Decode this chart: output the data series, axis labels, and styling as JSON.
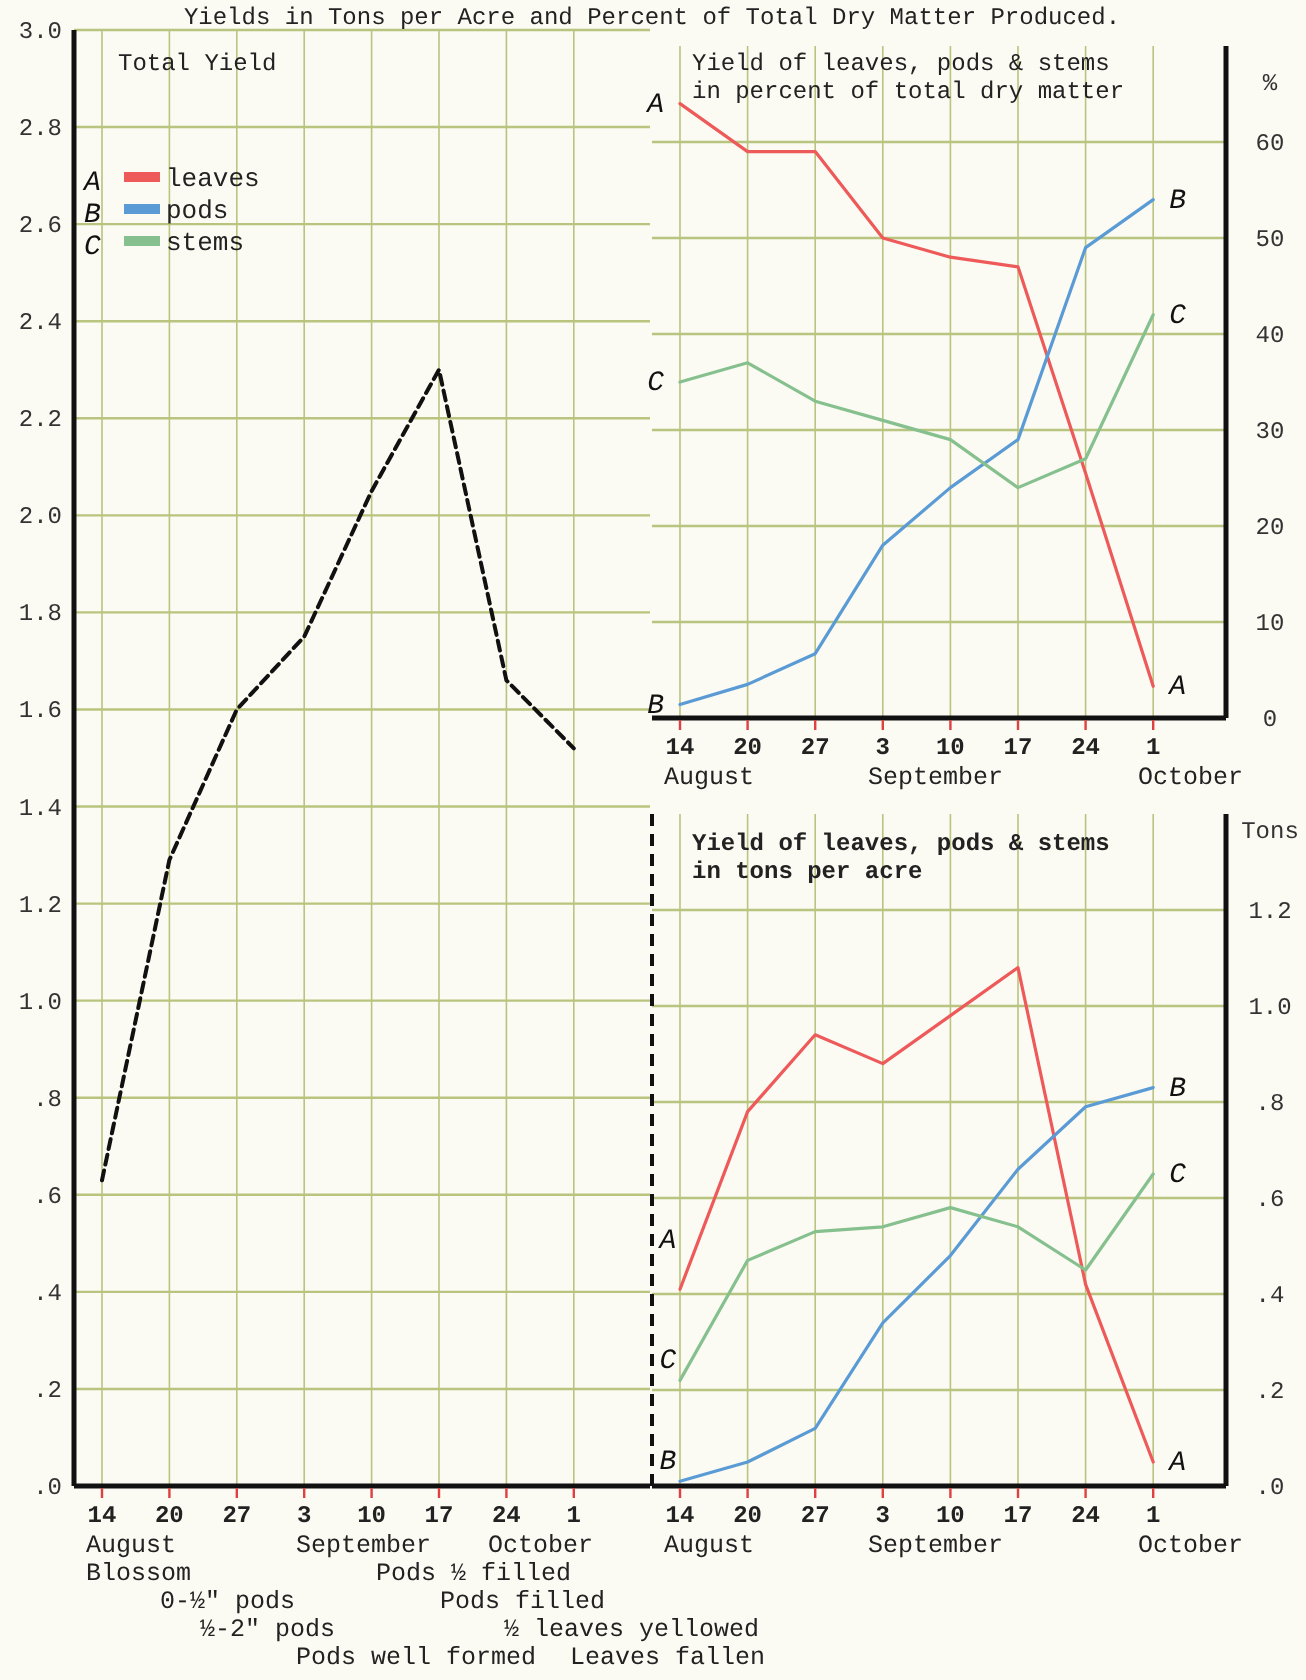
{
  "chart_data": [
    {
      "type": "line",
      "title": "Yields in Tons per Acre and Percent of Total Dry Matter Produced.",
      "subtitle": "Total Yield",
      "categories": [
        "14",
        "20",
        "27",
        "3",
        "10",
        "17",
        "24",
        "1"
      ],
      "values": [
        0.63,
        1.29,
        1.6,
        1.75,
        2.05,
        2.3,
        1.66,
        1.52
      ],
      "color": "#111111",
      "line_style": "dashed",
      "marker": "none",
      "ylim": [
        0,
        3.0
      ],
      "yticks": [
        {
          "value": 0,
          "label": ".0"
        },
        {
          "value": 0.2,
          "label": ".2"
        },
        {
          "value": 0.4,
          "label": ".4"
        },
        {
          "value": 0.6,
          "label": ".6"
        },
        {
          "value": 0.8,
          "label": ".8"
        },
        {
          "value": 1.0,
          "label": "1.0"
        },
        {
          "value": 1.2,
          "label": "1.2"
        },
        {
          "value": 1.4,
          "label": "1.4"
        },
        {
          "value": 1.6,
          "label": "1.6"
        },
        {
          "value": 1.8,
          "label": "1.8"
        },
        {
          "value": 2.0,
          "label": "2.0"
        },
        {
          "value": 2.2,
          "label": "2.2"
        },
        {
          "value": 2.4,
          "label": "2.4"
        },
        {
          "value": 2.6,
          "label": "2.6"
        },
        {
          "value": 2.8,
          "label": "2.8"
        },
        {
          "value": 3.0,
          "label": "3.0"
        }
      ],
      "grid": true,
      "annotations": [
        "August",
        "September",
        "October",
        "Blossom",
        "Pods ½ filled",
        "0-½\" pods",
        "Pods filled",
        "½-2\" pods",
        "½ leaves yellowed",
        "Pods well formed",
        "Leaves fallen"
      ]
    },
    {
      "type": "line",
      "title": "Yield of leaves, pods & stems\nin percent of total dry matter",
      "ylabel": "%",
      "categories": [
        "14",
        "20",
        "27",
        "3",
        "10",
        "17",
        "24",
        "1"
      ],
      "series": [
        {
          "name": "leaves",
          "color": "#ee5a5a",
          "values": [
            64,
            59,
            59,
            50,
            48,
            47,
            25.5,
            3.3
          ]
        },
        {
          "name": "pods",
          "color": "#5b9bd5",
          "values": [
            1.4,
            3.5,
            6.7,
            18,
            24,
            29,
            49,
            54
          ]
        },
        {
          "name": "stems",
          "color": "#86c08e",
          "values": [
            35,
            37,
            33,
            31,
            29,
            24,
            27,
            42
          ]
        }
      ],
      "ylim": [
        0,
        70
      ],
      "yticks": [
        0,
        10,
        20,
        30,
        40,
        50,
        60
      ],
      "grid": true,
      "legend": "left",
      "marker": "none",
      "annotations": [
        "A",
        "B",
        "C",
        "August",
        "September",
        "October",
        {
          "text": "A",
          "x": "14",
          "y": 64
        },
        {
          "text": "A",
          "x": "1",
          "y": 3.3
        },
        {
          "text": "B",
          "x": "14",
          "y": 1.4
        },
        {
          "text": "B",
          "x": "1",
          "y": 54
        },
        {
          "text": "C",
          "x": "14",
          "y": 35
        },
        {
          "text": "C",
          "x": "1",
          "y": 42
        }
      ]
    },
    {
      "type": "line",
      "title": "Yield of leaves, pods & stems\nin tons per acre",
      "ylabel": "Tons",
      "categories": [
        "14",
        "20",
        "27",
        "3",
        "10",
        "17",
        "24",
        "1"
      ],
      "series": [
        {
          "color": "#ee5a5a",
          "values": [
            0.41,
            0.78,
            0.94,
            0.88,
            0.98,
            1.08,
            0.42,
            0.05
          ]
        },
        {
          "color": "#5b9bd5",
          "values": [
            0.01,
            0.05,
            0.12,
            0.34,
            0.48,
            0.66,
            0.79,
            0.83
          ]
        },
        {
          "color": "#86c08e",
          "values": [
            0.22,
            0.47,
            0.53,
            0.54,
            0.58,
            0.54,
            0.45,
            0.65
          ]
        }
      ],
      "ylim": [
        0,
        1.4
      ],
      "yticks": [
        {
          "value": 0,
          "label": ".0"
        },
        {
          "value": 0.2,
          "label": ".2"
        },
        {
          "value": 0.4,
          "label": ".4"
        },
        {
          "value": 0.6,
          "label": ".6"
        },
        {
          "value": 0.8,
          "label": ".8"
        },
        {
          "value": 1.0,
          "label": "1.0"
        },
        {
          "value": 1.2,
          "label": "1.2"
        }
      ],
      "grid": true,
      "marker": "none",
      "annotations": [
        "August",
        "September",
        "October",
        {
          "text": "A",
          "x": "14",
          "y": 0.47
        },
        {
          "text": "A",
          "x": "1",
          "y": 0.05
        },
        {
          "text": "B",
          "x": "14",
          "y": 0.01
        },
        {
          "text": "B",
          "x": "1",
          "y": 0.83
        },
        {
          "text": "C",
          "x": "14",
          "y": 0.22
        },
        {
          "text": "C",
          "x": "1",
          "y": 0.65
        }
      ]
    }
  ]
}
